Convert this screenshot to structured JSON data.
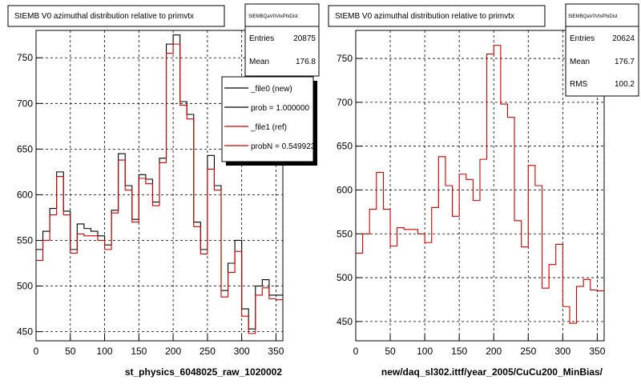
{
  "chart_data": [
    {
      "type": "histogram",
      "title": "StEMB V0 azimuthal distribution relative to primvtx",
      "xlabel": "st_physics_6048025_raw_1020002",
      "ylabel": "",
      "xlim": [
        0,
        360
      ],
      "ylim": [
        440,
        780
      ],
      "bin_width": 10,
      "x_ticks": [
        0,
        50,
        100,
        150,
        200,
        250,
        300,
        350
      ],
      "y_ticks": [
        450,
        500,
        550,
        600,
        650,
        700,
        750
      ],
      "grid": true,
      "series": [
        {
          "name": "_file0 (new)",
          "color": "#000000",
          "values": [
            540,
            560,
            585,
            625,
            582,
            540,
            568,
            563,
            560,
            555,
            545,
            583,
            645,
            610,
            573,
            622,
            617,
            592,
            640,
            765,
            775,
            702,
            688,
            570,
            540,
            643,
            610,
            495,
            525,
            550,
            475,
            453,
            500,
            507,
            490,
            490
          ]
        },
        {
          "name": "_file1 (ref)",
          "color": "#cc0000",
          "values": [
            528,
            550,
            578,
            620,
            578,
            536,
            557,
            555,
            555,
            550,
            540,
            580,
            638,
            605,
            570,
            618,
            612,
            588,
            635,
            755,
            765,
            698,
            683,
            565,
            535,
            628,
            605,
            488,
            515,
            538,
            467,
            448,
            490,
            498,
            486,
            485
          ]
        }
      ],
      "stats": {
        "title": "StEMBQaV0VtxPhiDist",
        "entries_label": "Entries",
        "entries": "20875",
        "mean_label": "Mean",
        "mean": "176.8"
      },
      "legend": {
        "position": "top-right",
        "entries": [
          {
            "text": "_file0 (new)",
            "color": "#000000"
          },
          {
            "text": "prob = 1.000000",
            "color": "#000000"
          },
          {
            "text": "_file1 (ref)",
            "color": "#cc0000"
          },
          {
            "text": "probN = 0.549923",
            "color": "#cc0000"
          }
        ]
      }
    },
    {
      "type": "histogram",
      "title": "StEMB V0 azimuthal distribution relative to primvtx",
      "xlabel": "new/daq_sl302.ittf/year_2005/CuCu200_MinBias/",
      "ylabel": "",
      "xlim": [
        0,
        360
      ],
      "ylim": [
        428,
        782
      ],
      "bin_width": 10,
      "x_ticks": [
        0,
        50,
        100,
        150,
        200,
        250,
        300,
        350
      ],
      "y_ticks": [
        450,
        500,
        550,
        600,
        650,
        700,
        750
      ],
      "grid": true,
      "series": [
        {
          "name": "",
          "color": "#cc0000",
          "values": [
            528,
            550,
            578,
            620,
            578,
            536,
            557,
            555,
            555,
            550,
            540,
            580,
            638,
            605,
            570,
            618,
            612,
            588,
            635,
            755,
            765,
            698,
            683,
            565,
            535,
            628,
            605,
            488,
            515,
            538,
            467,
            448,
            490,
            498,
            486,
            485
          ]
        }
      ],
      "stats": {
        "title": "StEMBQaV0VtxPhiDist",
        "entries_label": "Entries",
        "entries": "20624",
        "mean_label": "Mean",
        "mean": "176.7",
        "rms_label": "RMS",
        "rms": "100.2"
      }
    }
  ]
}
